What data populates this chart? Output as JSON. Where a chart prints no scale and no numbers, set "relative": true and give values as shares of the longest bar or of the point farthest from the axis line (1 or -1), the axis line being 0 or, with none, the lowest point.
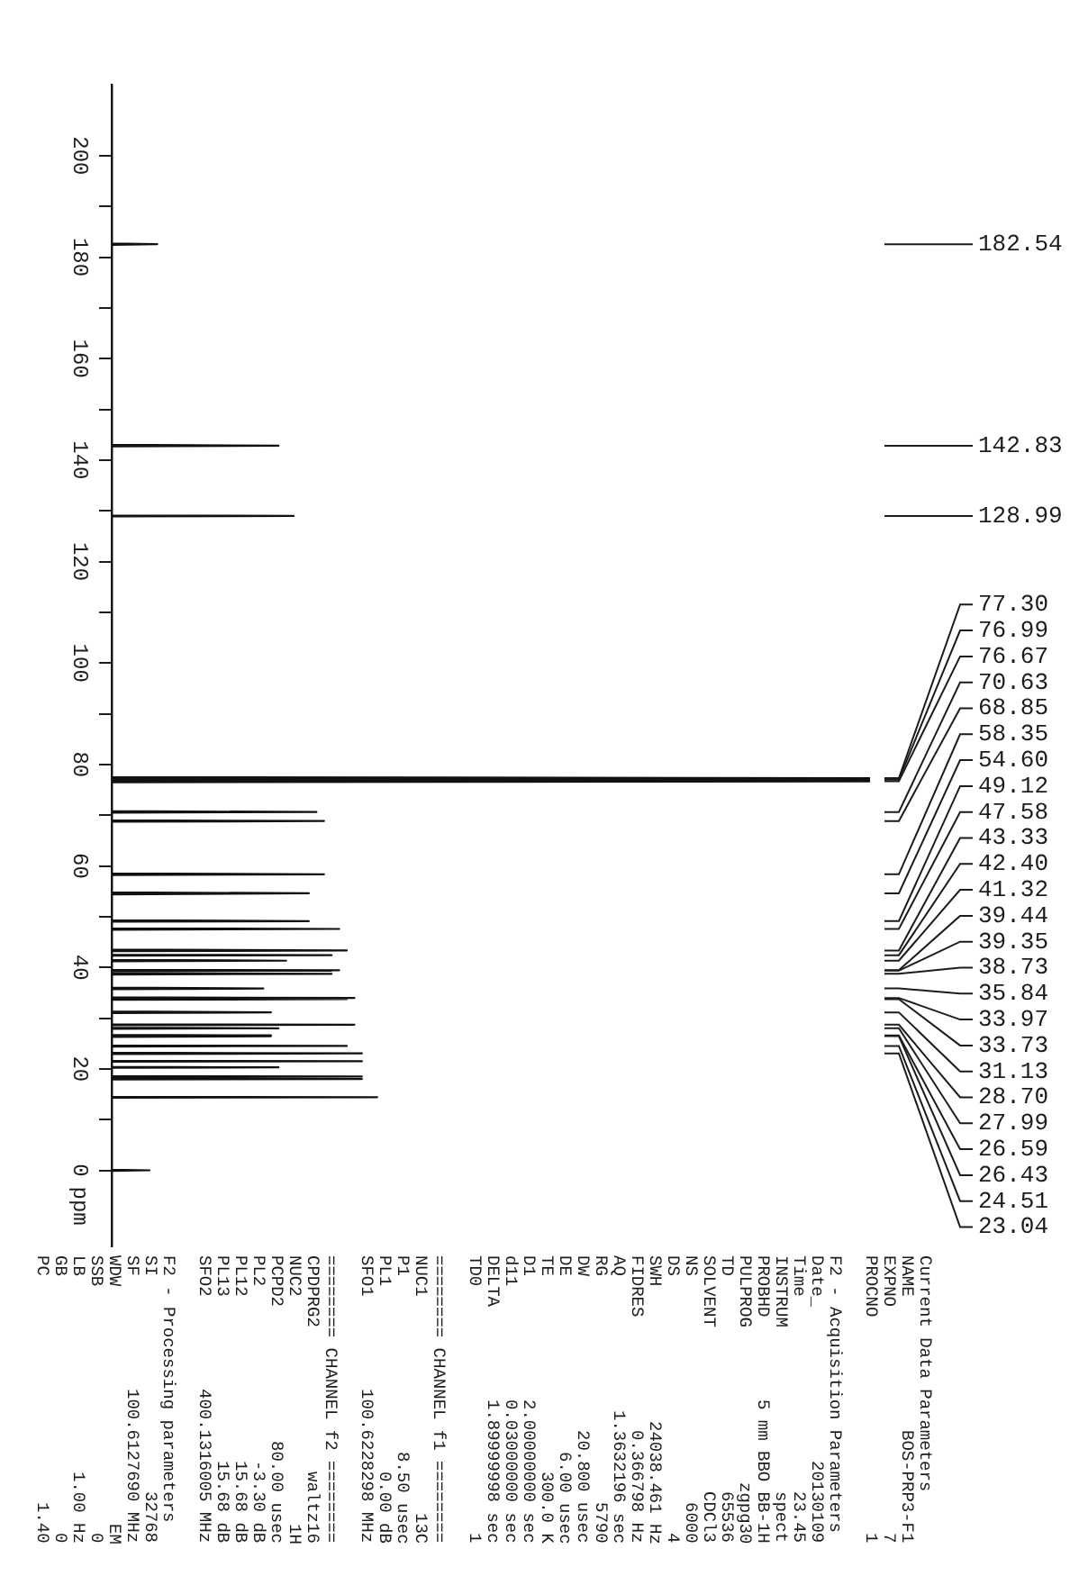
{
  "chart_data": {
    "type": "line",
    "orientation": "horizontal",
    "relative": true,
    "color": "#111111",
    "ylim": [
      -15,
      214
    ],
    "yticks": [
      0,
      {
        "value": 10,
        "label": null
      },
      20,
      {
        "value": 30,
        "label": null
      },
      40,
      {
        "value": 50,
        "label": null
      },
      60,
      {
        "value": 70,
        "label": null
      },
      80,
      {
        "value": 90,
        "label": null
      },
      100,
      {
        "value": 110,
        "label": null
      },
      120,
      {
        "value": 130,
        "label": null
      },
      140,
      {
        "value": 150,
        "label": null
      },
      160,
      {
        "value": 170,
        "label": null
      },
      180,
      {
        "value": 190,
        "label": null
      },
      200
    ],
    "ylabel": "ppm",
    "x": [
      214,
      182.7,
      182.54,
      182.4,
      143,
      142.83,
      142.7,
      129.1,
      128.99,
      128.9,
      77.5,
      77.3,
      77.15,
      76.99,
      76.85,
      76.67,
      76.5,
      70.8,
      70.63,
      70.5,
      69,
      68.85,
      68.7,
      58.5,
      58.35,
      58.2,
      54.8,
      54.6,
      54.4,
      49.3,
      49.12,
      49,
      47.7,
      47.58,
      47.4,
      43.5,
      43.33,
      43.2,
      42.5,
      42.4,
      42.3,
      41.5,
      41.32,
      41.2,
      39.5,
      39.44,
      39.4,
      39.35,
      39.3,
      38.9,
      38.73,
      38.6,
      36,
      35.84,
      35.7,
      34.1,
      33.97,
      33.85,
      33.73,
      33.6,
      31.3,
      31.13,
      31,
      28.8,
      28.7,
      28.6,
      28.1,
      27.99,
      27.9,
      26.7,
      26.59,
      26.5,
      26.43,
      26.3,
      24.6,
      24.51,
      24.4,
      23.2,
      23.04,
      22.9,
      21.6,
      21.5,
      21.4,
      20.4,
      20.3,
      20.2,
      18.6,
      18.5,
      18.4,
      18.1,
      18,
      17.9,
      14.5,
      14.4,
      14.3,
      0.1,
      0,
      -0.1,
      -15
    ],
    "values": [
      0,
      0,
      0.06,
      0,
      0,
      0.22,
      0,
      0,
      0.24,
      0,
      0,
      1,
      0,
      1,
      0,
      1,
      0,
      0,
      0.27,
      0,
      0,
      0.28,
      0,
      0,
      0.28,
      0,
      0,
      0.26,
      0,
      0,
      0.26,
      0,
      0,
      0.3,
      0,
      0,
      0.31,
      0,
      0,
      0.29,
      0,
      0,
      0.23,
      0,
      0,
      0.3,
      0,
      0.29,
      0,
      0,
      0.29,
      0,
      0,
      0.2,
      0,
      0,
      0.32,
      0,
      0.31,
      0,
      0,
      0.21,
      0,
      0,
      0.32,
      0,
      0,
      0.22,
      0,
      0,
      0.21,
      0,
      0.21,
      0,
      0,
      0.31,
      0,
      0,
      0.33,
      0,
      0,
      0.33,
      0,
      0,
      0.22,
      0,
      0,
      0.33,
      0,
      0,
      0.33,
      0,
      0,
      0.35,
      0,
      0,
      0.05,
      0,
      0
    ],
    "annotations": [
      "182.54",
      "142.83",
      "128.99",
      "77.30",
      "76.99",
      "76.67",
      "70.63",
      "68.85",
      "58.35",
      "54.60",
      "49.12",
      "47.58",
      "43.33",
      "42.40",
      "41.32",
      "39.44",
      "39.35",
      "38.73",
      "35.84",
      "33.97",
      "33.73",
      "31.13",
      "28.70",
      "27.99",
      "26.59",
      "26.43",
      "24.51",
      "23.04",
      "Current Data Parameters",
      "NAME BOS-PRP3-F1",
      "EXPNO 7",
      "PROCNO 1",
      "F2 - Acquisition Parameters",
      "Date_ 20130109",
      "Time 23.45",
      "INSTRUM spect",
      "PROBHD 5 mm BBO BB-1H",
      "PULPROG zgpg30",
      "TD 65536",
      "SOLVENT CDCl3",
      "NS 6000",
      "DS 4",
      "SWH 24038.461 Hz",
      "FIDRES 0.366798 Hz",
      "AQ 1.3632196 sec",
      "RG 5790",
      "DW 20.800 usec",
      "DE 6.00 usec",
      "TE 300.0 K",
      "D1 2.00000000 sec",
      "d11 0.03000000 sec",
      "DELTA 1.89999998 sec",
      "TD0 1",
      "======== CHANNEL f1 ========",
      "NUC1 13C",
      "P1 8.50 usec",
      "PL1 0.00 dB",
      "SFO1 100.6228298 MHz",
      "======== CHANNEL f2 ========",
      "CPDPRG2 waltz16",
      "NUC2 1H",
      "PCPD2 80.00 usec",
      "PL2 -3.30 dB",
      "PL12 15.68 dB",
      "PL13 15.68 dB",
      "SFO2 400.1316005 MHz",
      "F2 - Processing parameters",
      "SI 32768",
      "SF 100.6127690 MHz",
      "WDW EM",
      "SSB 0",
      "LB 1.00 Hz",
      "GB 0",
      "PC 1.40"
    ]
  }
}
